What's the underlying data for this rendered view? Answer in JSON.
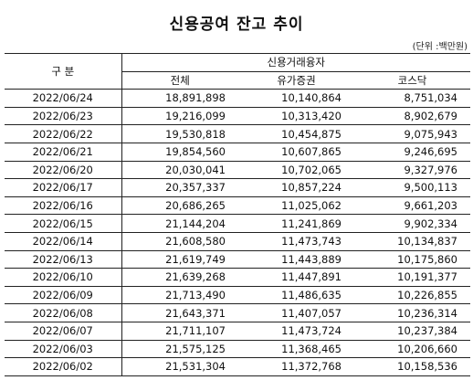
{
  "title": "신용공여 잔고 추이",
  "unit": "(단위 :백만원)",
  "header": {
    "period": "구 분",
    "group": "신용거래융자",
    "total": "전체",
    "kospi": "유가증권",
    "kosdaq": "코스닥"
  },
  "rows": [
    {
      "date": "2022/06/24",
      "total": "18,891,898",
      "kospi": "10,140,864",
      "kosdaq": "8,751,034"
    },
    {
      "date": "2022/06/23",
      "total": "19,216,099",
      "kospi": "10,313,420",
      "kosdaq": "8,902,679"
    },
    {
      "date": "2022/06/22",
      "total": "19,530,818",
      "kospi": "10,454,875",
      "kosdaq": "9,075,943"
    },
    {
      "date": "2022/06/21",
      "total": "19,854,560",
      "kospi": "10,607,865",
      "kosdaq": "9,246,695"
    },
    {
      "date": "2022/06/20",
      "total": "20,030,041",
      "kospi": "10,702,065",
      "kosdaq": "9,327,976"
    },
    {
      "date": "2022/06/17",
      "total": "20,357,337",
      "kospi": "10,857,224",
      "kosdaq": "9,500,113"
    },
    {
      "date": "2022/06/16",
      "total": "20,686,265",
      "kospi": "11,025,062",
      "kosdaq": "9,661,203"
    },
    {
      "date": "2022/06/15",
      "total": "21,144,204",
      "kospi": "11,241,869",
      "kosdaq": "9,902,334"
    },
    {
      "date": "2022/06/14",
      "total": "21,608,580",
      "kospi": "11,473,743",
      "kosdaq": "10,134,837"
    },
    {
      "date": "2022/06/13",
      "total": "21,619,749",
      "kospi": "11,443,889",
      "kosdaq": "10,175,860"
    },
    {
      "date": "2022/06/10",
      "total": "21,639,268",
      "kospi": "11,447,891",
      "kosdaq": "10,191,377"
    },
    {
      "date": "2022/06/09",
      "total": "21,713,490",
      "kospi": "11,486,635",
      "kosdaq": "10,226,855"
    },
    {
      "date": "2022/06/08",
      "total": "21,643,371",
      "kospi": "11,407,057",
      "kosdaq": "10,236,314"
    },
    {
      "date": "2022/06/07",
      "total": "21,711,107",
      "kospi": "11,473,724",
      "kosdaq": "10,237,384"
    },
    {
      "date": "2022/06/03",
      "total": "21,575,125",
      "kospi": "11,368,465",
      "kosdaq": "10,206,660"
    },
    {
      "date": "2022/06/02",
      "total": "21,531,304",
      "kospi": "11,372,768",
      "kosdaq": "10,158,536"
    }
  ]
}
